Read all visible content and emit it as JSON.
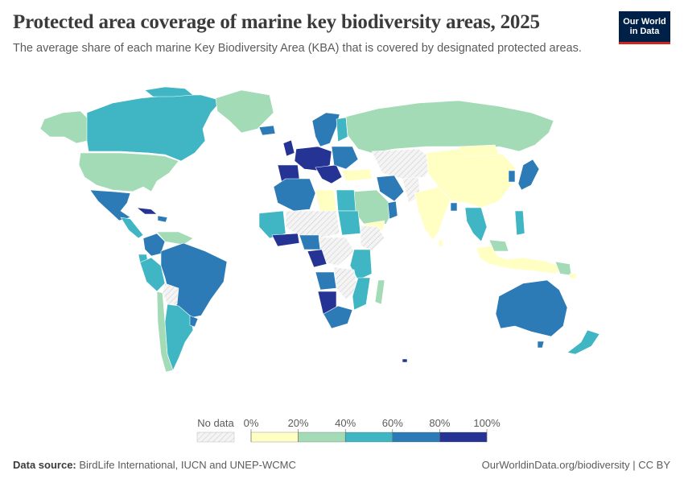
{
  "header": {
    "title": "Protected area coverage of marine key biodiversity areas, 2025",
    "subtitle": "The average share of each marine Key Biodiversity Area (KBA) that is covered by designated protected areas.",
    "logo_line1": "Our World",
    "logo_line2": "in Data"
  },
  "legend": {
    "no_data_label": "No data",
    "ticks": [
      "0%",
      "20%",
      "40%",
      "60%",
      "80%",
      "100%"
    ],
    "bins": [
      {
        "range": "0–20%",
        "color": "#ffffc4"
      },
      {
        "range": "20–40%",
        "color": "#a2dbb6"
      },
      {
        "range": "40–60%",
        "color": "#40b5c4"
      },
      {
        "range": "60–80%",
        "color": "#2c7bb6"
      },
      {
        "range": "80–100%",
        "color": "#253494"
      }
    ],
    "no_data_color": "#eeeeee"
  },
  "footer": {
    "source_label": "Data source:",
    "source_text": "BirdLife International, IUCN and UNEP-WCMC",
    "url_text": "OurWorldinData.org/biodiversity | CC BY"
  }
}
